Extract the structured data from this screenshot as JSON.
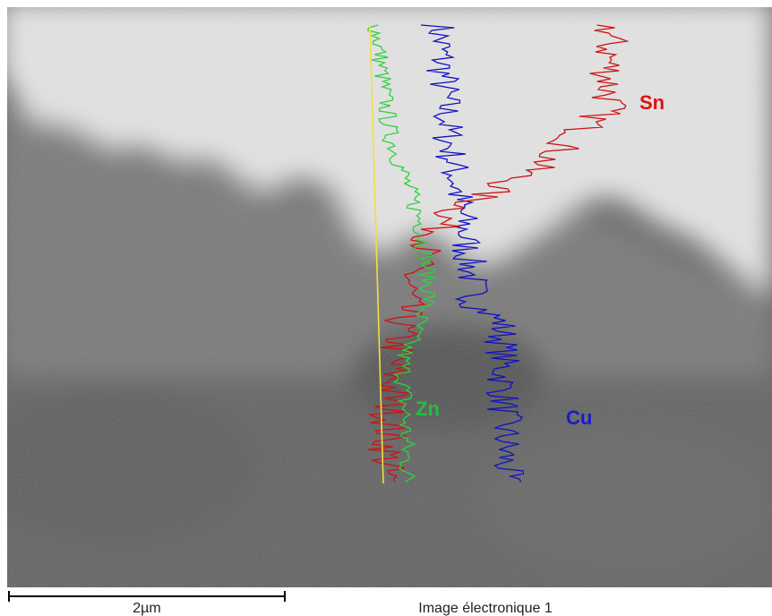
{
  "image": {
    "labels": {
      "sn": "Sn",
      "zn": "Zn",
      "cu": "Cu"
    }
  },
  "footer": {
    "scale_bar_label": "2µm",
    "caption": "Image électronique 1"
  }
}
